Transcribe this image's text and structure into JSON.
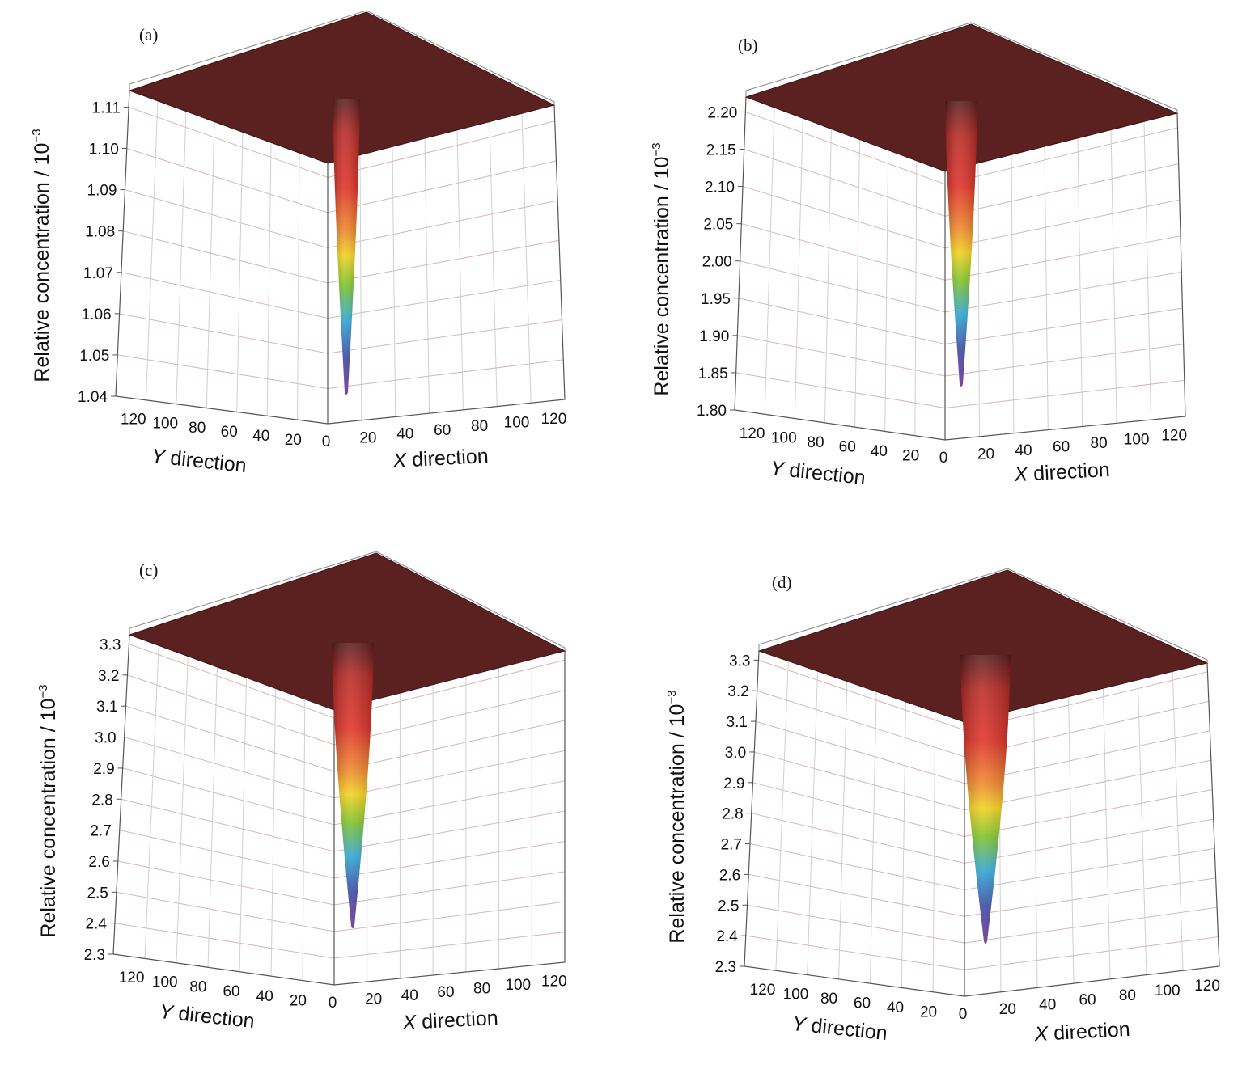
{
  "chart_data": [
    {
      "type": "surface3d",
      "panel_label": "(a)",
      "zlabel": "Relative concentration / 10",
      "zlabel_exponent": "−3",
      "xlabel_var": "X",
      "xlabel": " direction",
      "ylabel_var": "Y",
      "ylabel": " direction",
      "x_ticks": [
        "0",
        "20",
        "40",
        "60",
        "80",
        "100",
        "120"
      ],
      "y_ticks": [
        "120",
        "100",
        "80",
        "60",
        "40",
        "20"
      ],
      "z_ticks": [
        "1.04",
        "1.05",
        "1.06",
        "1.07",
        "1.08",
        "1.09",
        "1.10",
        "1.11"
      ],
      "zlim": [
        1.04,
        1.114
      ],
      "surface_max": 1.114,
      "surface_min": 1.041,
      "minimum_location": [
        0,
        0
      ],
      "colors": [
        "#5a1f1e",
        "#e03127",
        "#f08a2a",
        "#f3d21c",
        "#7ec22a",
        "#2ea4d4",
        "#3a4aa0",
        "#6b2e91"
      ]
    },
    {
      "type": "surface3d",
      "panel_label": "(b)",
      "zlabel": "Relative concentration / 10",
      "zlabel_exponent": "−3",
      "xlabel_var": "X",
      "xlabel": " direction",
      "ylabel_var": "Y",
      "ylabel": " direction",
      "x_ticks": [
        "0",
        "20",
        "40",
        "60",
        "80",
        "100",
        "120"
      ],
      "y_ticks": [
        "120",
        "100",
        "80",
        "60",
        "40",
        "20"
      ],
      "z_ticks": [
        "1.80",
        "1.85",
        "1.90",
        "1.95",
        "2.00",
        "2.05",
        "2.10",
        "2.15",
        "2.20"
      ],
      "zlim": [
        1.8,
        2.22
      ],
      "surface_max": 2.22,
      "surface_min": 1.83,
      "minimum_location": [
        0,
        0
      ],
      "colors": [
        "#5a1f1e",
        "#e03127",
        "#f08a2a",
        "#f3d21c",
        "#7ec22a",
        "#2ea4d4",
        "#3a4aa0",
        "#6b2e91"
      ]
    },
    {
      "type": "surface3d",
      "panel_label": "(c)",
      "zlabel": "Relative concentration / 10",
      "zlabel_exponent": "−3",
      "xlabel_var": "X",
      "xlabel": " direction",
      "ylabel_var": "Y",
      "ylabel": " direction",
      "x_ticks": [
        "0",
        "20",
        "40",
        "60",
        "80",
        "100",
        "120"
      ],
      "y_ticks": [
        "120",
        "100",
        "80",
        "60",
        "40",
        "20"
      ],
      "z_ticks": [
        "2.3",
        "2.4",
        "2.5",
        "2.6",
        "2.7",
        "2.8",
        "2.9",
        "3.0",
        "3.1",
        "3.2",
        "3.3"
      ],
      "zlim": [
        2.3,
        3.33
      ],
      "surface_max": 3.33,
      "surface_min": 2.37,
      "minimum_location": [
        0,
        0
      ],
      "colors": [
        "#5a1f1e",
        "#e03127",
        "#f08a2a",
        "#f3d21c",
        "#7ec22a",
        "#2ea4d4",
        "#3a4aa0",
        "#6b2e91"
      ]
    },
    {
      "type": "surface3d",
      "panel_label": "(d)",
      "zlabel": "Relative concentration / 10",
      "zlabel_exponent": "−3",
      "xlabel_var": "X",
      "xlabel": " direction",
      "ylabel_var": "Y",
      "ylabel": " direction",
      "x_ticks": [
        "0",
        "20",
        "40",
        "60",
        "80",
        "100",
        "120"
      ],
      "y_ticks": [
        "120",
        "100",
        "80",
        "60",
        "40",
        "20"
      ],
      "z_ticks": [
        "2.3",
        "2.4",
        "2.5",
        "2.6",
        "2.7",
        "2.8",
        "2.9",
        "3.0",
        "3.1",
        "3.2",
        "3.3"
      ],
      "zlim": [
        2.3,
        3.33
      ],
      "surface_max": 3.33,
      "surface_min": 2.35,
      "minimum_location": [
        0,
        0
      ],
      "colors": [
        "#5a1f1e",
        "#e03127",
        "#f08a2a",
        "#f3d21c",
        "#7ec22a",
        "#2ea4d4",
        "#3a4aa0",
        "#6b2e91"
      ]
    }
  ]
}
